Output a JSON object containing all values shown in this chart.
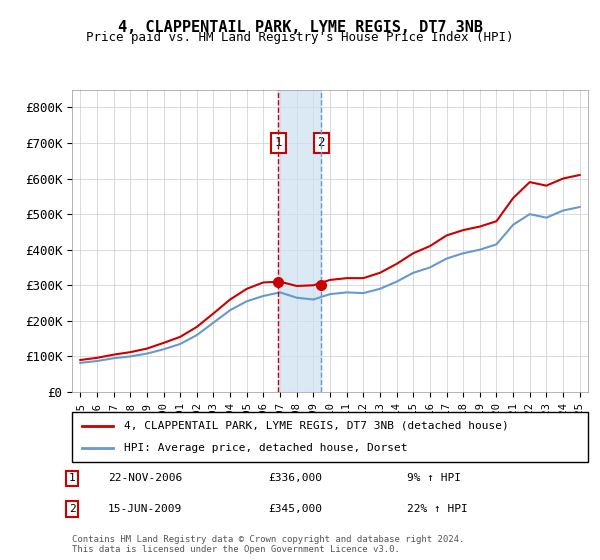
{
  "title": "4, CLAPPENTAIL PARK, LYME REGIS, DT7 3NB",
  "subtitle": "Price paid vs. HM Land Registry's House Price Index (HPI)",
  "ylabel": "",
  "ylim": [
    0,
    850000
  ],
  "yticks": [
    0,
    100000,
    200000,
    300000,
    400000,
    500000,
    600000,
    700000,
    800000
  ],
  "ytick_labels": [
    "£0",
    "£100K",
    "£200K",
    "£300K",
    "£400K",
    "£500K",
    "£600K",
    "£700K",
    "£800K"
  ],
  "legend_line1": "4, CLAPPENTAIL PARK, LYME REGIS, DT7 3NB (detached house)",
  "legend_line2": "HPI: Average price, detached house, Dorset",
  "transaction1_date": "22-NOV-2006",
  "transaction1_price": "£336,000",
  "transaction1_hpi": "9% ↑ HPI",
  "transaction2_date": "15-JUN-2009",
  "transaction2_price": "£345,000",
  "transaction2_hpi": "22% ↑ HPI",
  "footer": "Contains HM Land Registry data © Crown copyright and database right 2024.\nThis data is licensed under the Open Government Licence v3.0.",
  "red_color": "#cc0000",
  "blue_color": "#6699cc",
  "shade_color": "#cce0f0",
  "transaction1_x": 2006.9,
  "transaction2_x": 2009.46,
  "hpi_years": [
    1995,
    1996,
    1997,
    1998,
    1999,
    2000,
    2001,
    2002,
    2003,
    2004,
    2005,
    2006,
    2007,
    2008,
    2009,
    2010,
    2011,
    2012,
    2013,
    2014,
    2015,
    2016,
    2017,
    2018,
    2019,
    2020,
    2021,
    2022,
    2023,
    2024,
    2025
  ],
  "hpi_values": [
    82000,
    87000,
    95000,
    100000,
    108000,
    120000,
    135000,
    160000,
    195000,
    230000,
    255000,
    270000,
    280000,
    265000,
    260000,
    275000,
    280000,
    278000,
    290000,
    310000,
    335000,
    350000,
    375000,
    390000,
    400000,
    415000,
    470000,
    500000,
    490000,
    510000,
    520000
  ],
  "red_years": [
    1995,
    1996,
    1997,
    1998,
    1999,
    2000,
    2001,
    2002,
    2003,
    2004,
    2005,
    2006,
    2007,
    2008,
    2009,
    2010,
    2011,
    2012,
    2013,
    2014,
    2015,
    2016,
    2017,
    2018,
    2019,
    2020,
    2021,
    2022,
    2023,
    2024,
    2025
  ],
  "red_values": [
    90000,
    96000,
    105000,
    112000,
    122000,
    138000,
    155000,
    183000,
    221000,
    260000,
    290000,
    308000,
    310000,
    298000,
    300000,
    315000,
    320000,
    320000,
    335000,
    360000,
    390000,
    410000,
    440000,
    455000,
    465000,
    480000,
    545000,
    590000,
    580000,
    600000,
    610000
  ],
  "xtick_years": [
    1995,
    1996,
    1997,
    1998,
    1999,
    2000,
    2001,
    2002,
    2003,
    2004,
    2005,
    2006,
    2007,
    2008,
    2009,
    2010,
    2011,
    2012,
    2013,
    2014,
    2015,
    2016,
    2017,
    2018,
    2019,
    2020,
    2021,
    2022,
    2023,
    2024,
    2025
  ]
}
